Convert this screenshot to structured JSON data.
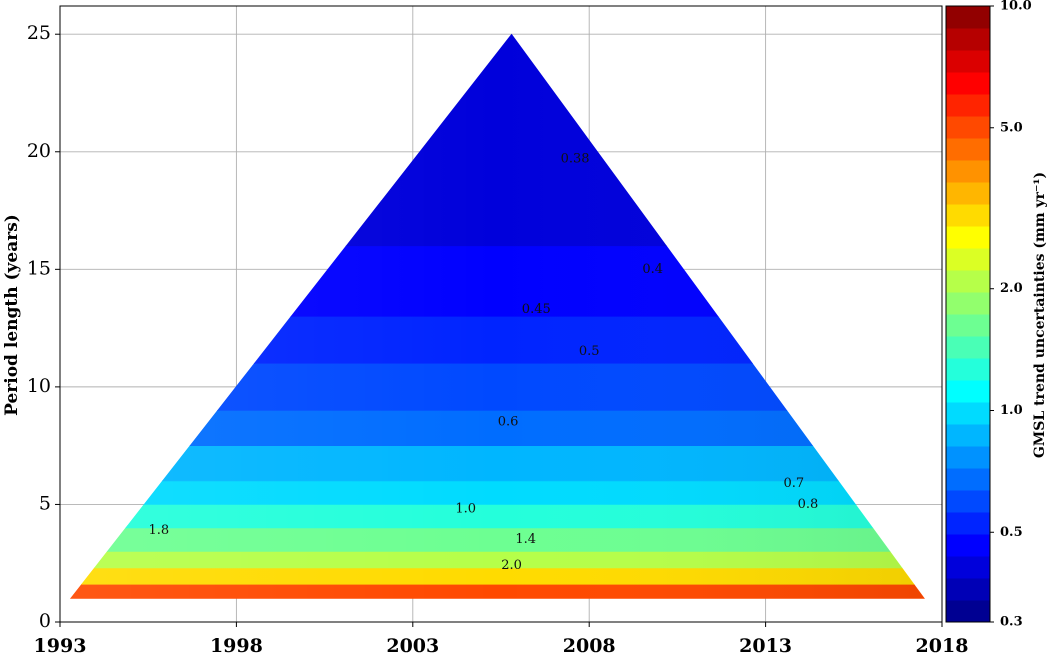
{
  "chart_data": {
    "type": "heatmap",
    "title": "",
    "xlabel": "",
    "ylabel": "Period length (years)",
    "xlim": [
      1993,
      2018
    ],
    "ylim": [
      0,
      26.2
    ],
    "x_ticks": [
      "1993",
      "1998",
      "2003",
      "2008",
      "2013",
      "2018"
    ],
    "y_ticks": [
      "0",
      "5",
      "10",
      "15",
      "20",
      "25"
    ],
    "grid": true,
    "triangle": {
      "left": [
        1993.3,
        1
      ],
      "apex": [
        2005.8,
        25
      ],
      "right": [
        2017.5,
        1
      ]
    },
    "colorbar": {
      "label": "GMSL trend uncertainties (mm yr⁻¹)",
      "scale": "log",
      "range": [
        0.3,
        10.0
      ],
      "ticks": [
        "0.3",
        "0.5",
        "1.0",
        "2.0",
        "5.0",
        "10.0"
      ],
      "colormap": "jet",
      "levels": 28
    },
    "bands": [
      {
        "y": [
          1.0,
          1.6
        ],
        "value": 5.0
      },
      {
        "y": [
          1.6,
          2.3
        ],
        "value": 3.0
      },
      {
        "y": [
          2.3,
          3.0
        ],
        "value": 2.1
      },
      {
        "y": [
          3.0,
          4.0
        ],
        "value": 1.6
      },
      {
        "y": [
          4.0,
          5.0
        ],
        "value": 1.25
      },
      {
        "y": [
          5.0,
          6.0
        ],
        "value": 1.0
      },
      {
        "y": [
          6.0,
          7.5
        ],
        "value": 0.85
      },
      {
        "y": [
          7.5,
          9.0
        ],
        "value": 0.72
      },
      {
        "y": [
          9.0,
          11.0
        ],
        "value": 0.6
      },
      {
        "y": [
          11.0,
          13.0
        ],
        "value": 0.52
      },
      {
        "y": [
          13.0,
          16.0
        ],
        "value": 0.46
      },
      {
        "y": [
          16.0,
          20.0
        ],
        "value": 0.42
      },
      {
        "y": [
          20.0,
          25.0
        ],
        "value": 0.4
      }
    ],
    "contour_labels": [
      {
        "text": "1.8",
        "x": 1995.8,
        "y": 3.9
      },
      {
        "text": "1.0",
        "x": 2004.5,
        "y": 4.8
      },
      {
        "text": "1.4",
        "x": 2006.2,
        "y": 3.5
      },
      {
        "text": "2.0",
        "x": 2005.8,
        "y": 2.4
      },
      {
        "text": "0.6",
        "x": 2005.7,
        "y": 8.5
      },
      {
        "text": "0.5",
        "x": 2008.0,
        "y": 11.5
      },
      {
        "text": "0.45",
        "x": 2006.5,
        "y": 13.3
      },
      {
        "text": "0.4",
        "x": 2009.8,
        "y": 15.0
      },
      {
        "text": "0.38",
        "x": 2007.6,
        "y": 19.7
      },
      {
        "text": "0.7",
        "x": 2013.8,
        "y": 5.9
      },
      {
        "text": "0.8",
        "x": 2014.2,
        "y": 5.0
      }
    ]
  }
}
